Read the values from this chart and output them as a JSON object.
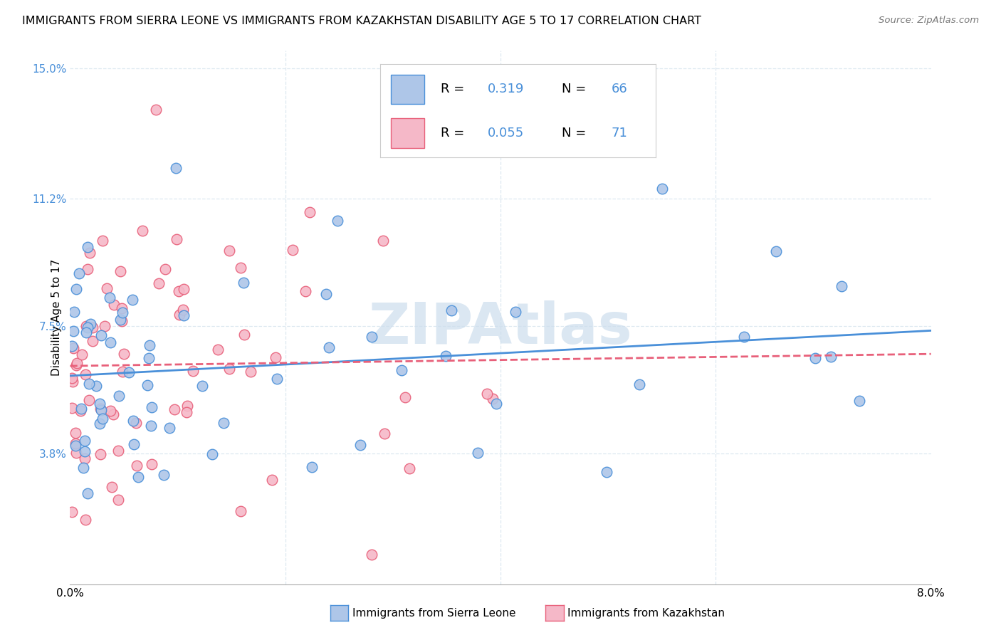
{
  "title": "IMMIGRANTS FROM SIERRA LEONE VS IMMIGRANTS FROM KAZAKHSTAN DISABILITY AGE 5 TO 17 CORRELATION CHART",
  "source": "Source: ZipAtlas.com",
  "xlabel_label": "Immigrants from Sierra Leone",
  "xlabel_label2": "Immigrants from Kazakhstan",
  "ylabel": "Disability Age 5 to 17",
  "xlim": [
    0.0,
    0.08
  ],
  "ylim": [
    0.0,
    0.155
  ],
  "xticks": [
    0.0,
    0.02,
    0.04,
    0.06,
    0.08
  ],
  "xticklabels": [
    "0.0%",
    "",
    "",
    "",
    "8.0%"
  ],
  "yticks": [
    0.038,
    0.075,
    0.112,
    0.15
  ],
  "yticklabels": [
    "3.8%",
    "7.5%",
    "11.2%",
    "15.0%"
  ],
  "sierra_leone_color": "#aec6e8",
  "kazakhstan_color": "#f5b8c8",
  "sierra_leone_line_color": "#4a90d9",
  "kazakhstan_line_color": "#e8607a",
  "R_sierra": 0.319,
  "N_sierra": 66,
  "R_kazakh": 0.055,
  "N_kazakh": 71,
  "watermark": "ZIPAtlas",
  "watermark_color": "#ccdded",
  "background_color": "#ffffff",
  "grid_color": "#dde8f0",
  "title_fontsize": 11.5,
  "axis_label_fontsize": 11,
  "tick_fontsize": 11,
  "legend_fontsize": 13
}
